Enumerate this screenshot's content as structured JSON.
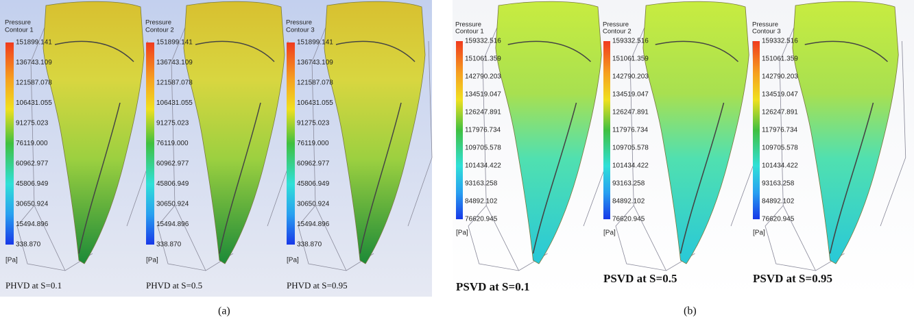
{
  "panels": [
    {
      "label": "(a)",
      "variable": "Pressure",
      "unit": "[Pa]",
      "levels": [
        "151899.141",
        "136743.109",
        "121587.078",
        "106431.055",
        "91275.023",
        "76119.000",
        "60962.977",
        "45806.949",
        "30650.924",
        "15494.896",
        "338.870"
      ],
      "plots": [
        {
          "contour": "Contour 1",
          "caption": "PHVD at S=0.1"
        },
        {
          "contour": "Contour 2",
          "caption": "PHVD at S=0.5"
        },
        {
          "contour": "Contour 3",
          "caption": "PHVD at S=0.95"
        }
      ]
    },
    {
      "label": "(b)",
      "variable": "Pressure",
      "unit": "[Pa]",
      "levels": [
        "159332.516",
        "151061.359",
        "142790.203",
        "134519.047",
        "126247.891",
        "117976.734",
        "109705.578",
        "101434.422",
        "93163.258",
        "84892.102",
        "76620.945"
      ],
      "plots": [
        {
          "contour": "Contour 1",
          "caption": "PSVD at S=0.1"
        },
        {
          "contour": "Contour 2",
          "caption": "PSVD at S=0.5"
        },
        {
          "contour": "Contour 3",
          "caption": "PSVD at S=0.95"
        }
      ]
    }
  ]
}
